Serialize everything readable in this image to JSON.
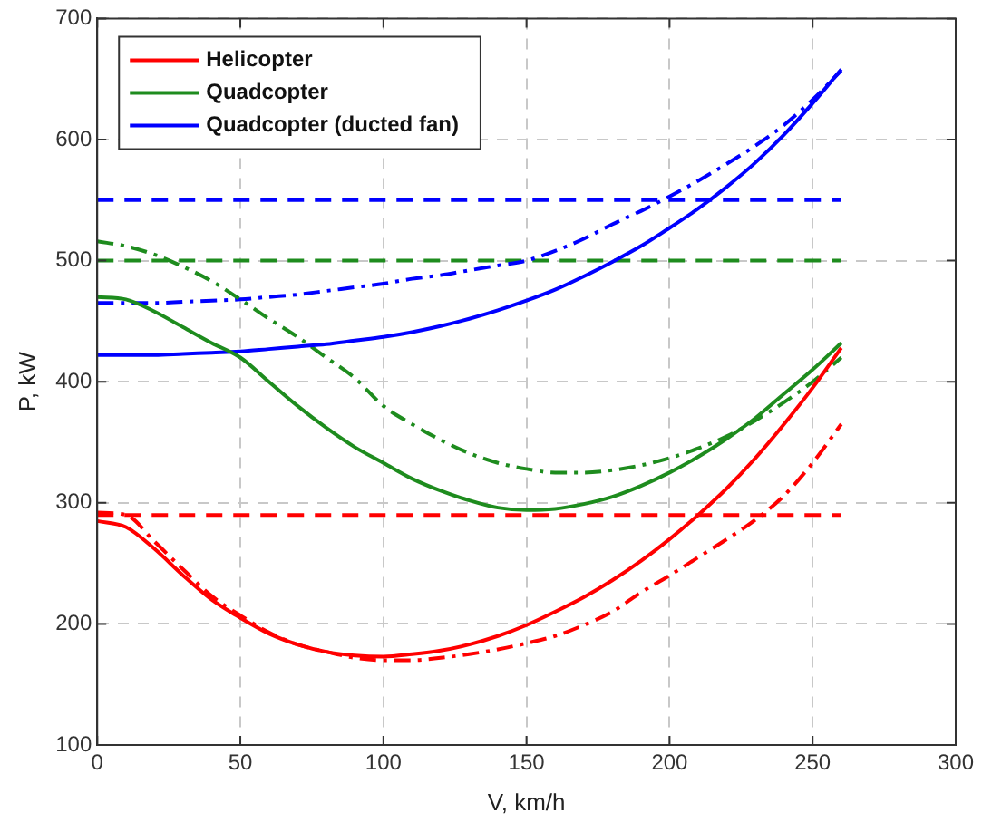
{
  "chart_data": {
    "type": "line",
    "xlabel": "V, km/h",
    "ylabel": "P, kW",
    "x": [
      0,
      10,
      20,
      30,
      40,
      50,
      60,
      70,
      80,
      90,
      100,
      110,
      120,
      130,
      140,
      150,
      160,
      170,
      180,
      190,
      200,
      210,
      220,
      230,
      240,
      250,
      260
    ],
    "series": [
      {
        "name": "Helicopter",
        "color": "#ff0000",
        "line_style": "solid",
        "values": [
          285,
          280,
          262,
          240,
          220,
          205,
          192,
          183,
          177,
          174,
          173,
          175,
          178,
          183,
          190,
          199,
          210,
          222,
          236,
          252,
          270,
          290,
          312,
          337,
          365,
          395,
          428
        ]
      },
      {
        "name": "Quadcopter",
        "color": "#1e8c1e",
        "line_style": "solid",
        "values": [
          470,
          468,
          458,
          445,
          432,
          420,
          400,
          380,
          362,
          346,
          333,
          320,
          310,
          302,
          296,
          294,
          295,
          299,
          305,
          314,
          325,
          338,
          353,
          370,
          390,
          410,
          432
        ]
      },
      {
        "name": "Quadcopter (ducted fan)",
        "color": "#0000ff",
        "line_style": "solid",
        "values": [
          422,
          422,
          422,
          423,
          424,
          425,
          427,
          429,
          431,
          434,
          437,
          441,
          446,
          452,
          459,
          467,
          476,
          487,
          499,
          512,
          527,
          543,
          561,
          581,
          604,
          630,
          658
        ]
      },
      {
        "color": "#ff0000",
        "line_style": "dashdot",
        "values": [
          292,
          290,
          268,
          245,
          223,
          207,
          193,
          183,
          177,
          172,
          170,
          170,
          172,
          175,
          179,
          184,
          190,
          199,
          210,
          226,
          240,
          255,
          270,
          286,
          306,
          333,
          365
        ]
      },
      {
        "color": "#1e8c1e",
        "line_style": "dashdot",
        "values": [
          516,
          512,
          505,
          495,
          483,
          468,
          452,
          437,
          420,
          403,
          380,
          365,
          352,
          341,
          333,
          328,
          325,
          325,
          327,
          331,
          337,
          345,
          355,
          368,
          383,
          400,
          420
        ]
      },
      {
        "color": "#0000ff",
        "line_style": "dashdot",
        "values": [
          465,
          465,
          465,
          466,
          467,
          468,
          470,
          472,
          475,
          478,
          481,
          485,
          488,
          492,
          496,
          500,
          508,
          518,
          530,
          541,
          553,
          566,
          580,
          595,
          612,
          633,
          657
        ]
      },
      {
        "color": "#ff0000",
        "line_style": "dashed",
        "values": [
          290,
          290,
          290,
          290,
          290,
          290,
          290,
          290,
          290,
          290,
          290,
          290,
          290,
          290,
          290,
          290,
          290,
          290,
          290,
          290,
          290,
          290,
          290,
          290,
          290,
          290,
          290
        ]
      },
      {
        "color": "#1e8c1e",
        "line_style": "dashed",
        "values": [
          500,
          500,
          500,
          500,
          500,
          500,
          500,
          500,
          500,
          500,
          500,
          500,
          500,
          500,
          500,
          500,
          500,
          500,
          500,
          500,
          500,
          500,
          500,
          500,
          500,
          500,
          500
        ]
      },
      {
        "color": "#0000ff",
        "line_style": "dashed",
        "values": [
          550,
          550,
          550,
          550,
          550,
          550,
          550,
          550,
          550,
          550,
          550,
          550,
          550,
          550,
          550,
          550,
          550,
          550,
          550,
          550,
          550,
          550,
          550,
          550,
          550,
          550,
          550
        ]
      }
    ],
    "xlim": [
      0,
      300
    ],
    "xticks": [
      0,
      50,
      100,
      150,
      200,
      250,
      300
    ],
    "ylim": [
      100,
      700
    ],
    "yticks": [
      100,
      200,
      300,
      400,
      500,
      600,
      700
    ],
    "grid": true,
    "legend": "top left",
    "marker": "none"
  }
}
